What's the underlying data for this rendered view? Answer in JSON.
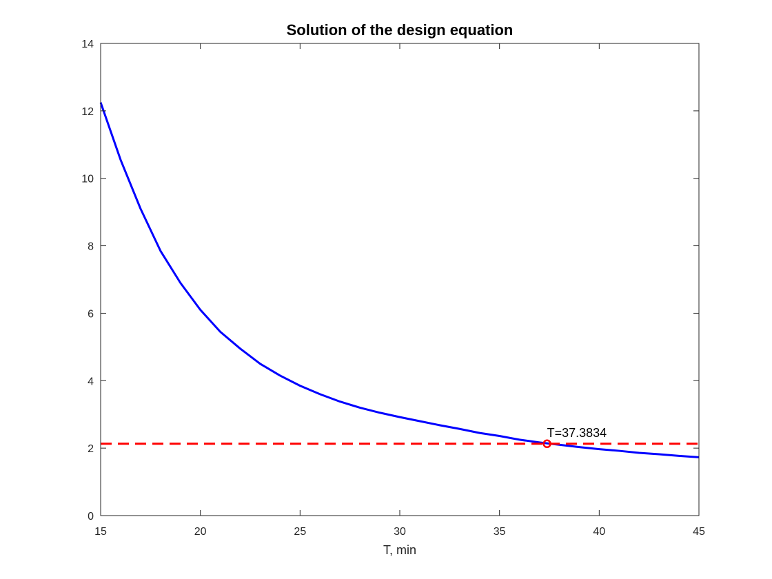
{
  "chart_data": {
    "type": "line",
    "title": "Solution of the design equation",
    "xlabel": "T, min",
    "ylabel": "",
    "xlim": [
      15,
      45
    ],
    "ylim": [
      0,
      14
    ],
    "xticks": [
      15,
      20,
      25,
      30,
      35,
      40,
      45
    ],
    "yticks": [
      0,
      2,
      4,
      6,
      8,
      10,
      12,
      14
    ],
    "grid": false,
    "box": true,
    "series": [
      {
        "color": "#0000ff",
        "style": "solid",
        "x": [
          15,
          16,
          17,
          18,
          19,
          20,
          21,
          22,
          23,
          24,
          25,
          26,
          27,
          28,
          29,
          30,
          31,
          32,
          33,
          34,
          35,
          36,
          37,
          38,
          39,
          40,
          41,
          42,
          43,
          44,
          45
        ],
        "y": [
          12.25,
          10.55,
          9.1,
          7.85,
          6.9,
          6.1,
          5.45,
          4.95,
          4.5,
          4.15,
          3.85,
          3.6,
          3.38,
          3.2,
          3.05,
          2.92,
          2.8,
          2.68,
          2.57,
          2.45,
          2.36,
          2.25,
          2.17,
          2.1,
          2.03,
          1.97,
          1.92,
          1.86,
          1.82,
          1.77,
          1.73
        ]
      },
      {
        "color": "#ff0000",
        "style": "dashed",
        "x": [
          15,
          45
        ],
        "y": [
          2.13,
          2.13
        ]
      }
    ],
    "points": [
      {
        "x": 37.3834,
        "y": 2.13,
        "color": "#ff0000",
        "marker": "circle"
      }
    ],
    "annotations": [
      {
        "text": "T=37.3834",
        "x": 37.3834,
        "y": 2.13
      }
    ]
  }
}
